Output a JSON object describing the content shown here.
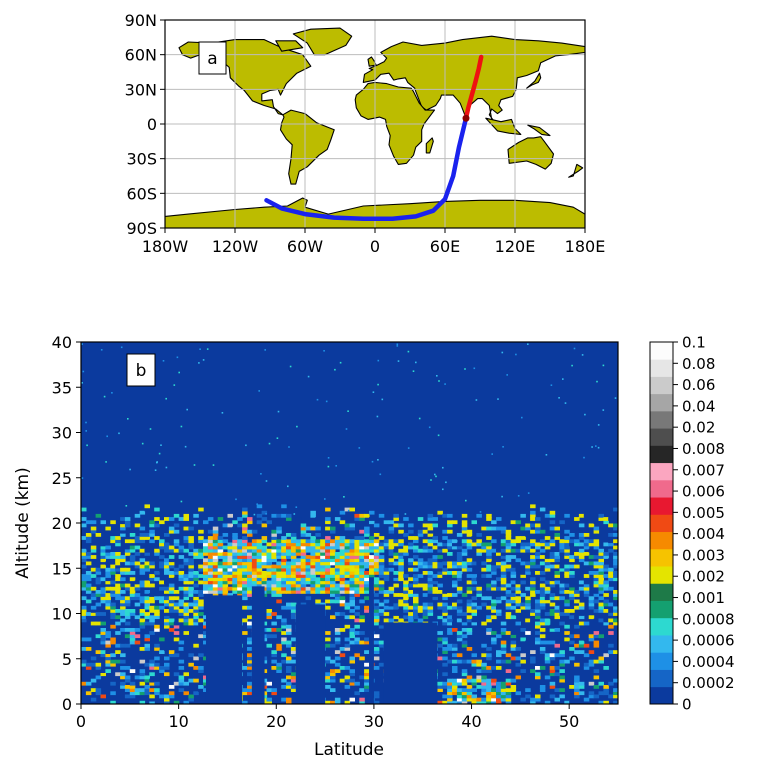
{
  "chart_data": [
    {
      "type": "map",
      "panel_label": "a",
      "x_ticks": [
        "180W",
        "120W",
        "60W",
        "0",
        "60E",
        "120E",
        "180E"
      ],
      "y_ticks": [
        "90N",
        "60N",
        "30N",
        "0",
        "30S",
        "60S",
        "90S"
      ],
      "grid": true,
      "land_color": "#bcbc00",
      "ocean_color": "#ffffff",
      "track": {
        "red_segment": {
          "color": "#ee1111",
          "lon": [
            91,
            89,
            86,
            83,
            80,
            78
          ],
          "lat": [
            58,
            48,
            36,
            25,
            14,
            5
          ]
        },
        "blue_segment": {
          "color": "#1a22ee",
          "lon": [
            78,
            72,
            67,
            60,
            50,
            35,
            15,
            -10,
            -35,
            -60,
            -80,
            -93
          ],
          "lat": [
            5,
            -20,
            -45,
            -65,
            -75,
            -80,
            -82,
            -82,
            -81,
            -78,
            -73,
            -66
          ]
        }
      }
    },
    {
      "type": "heatmap",
      "panel_label": "b",
      "xlabel": "Latitude",
      "ylabel": "Altitude (km)",
      "xlim": [
        0,
        55
      ],
      "ylim": [
        0,
        40
      ],
      "x_ticks": [
        "0",
        "10",
        "20",
        "30",
        "40",
        "50"
      ],
      "y_ticks": [
        "0",
        "5",
        "10",
        "15",
        "20",
        "25",
        "30",
        "35",
        "40"
      ],
      "background_color": "#0b3a9e",
      "colorbar": {
        "labels": [
          "0",
          "0.0002",
          "0.0004",
          "0.0006",
          "0.0008",
          "0.001",
          "0.002",
          "0.003",
          "0.004",
          "0.005",
          "0.006",
          "0.007",
          "0.008",
          "0.02",
          "0.04",
          "0.06",
          "0.08",
          "0.1"
        ],
        "colors": [
          "#0b3a9e",
          "#1565c6",
          "#1e90e6",
          "#33b8ee",
          "#2dd9d0",
          "#14a070",
          "#1e7a48",
          "#e4e400",
          "#f6c300",
          "#f68a00",
          "#f04a14",
          "#e81830",
          "#f06a8c",
          "#fba6c0",
          "#262626",
          "#4e4e4e",
          "#787878",
          "#a6a6a6",
          "#cbcbcb",
          "#e6e6e6",
          "#fcfcfc"
        ]
      },
      "features": {
        "aerosol_layer_top_km": 21,
        "dense_layer_km": [
          8.5,
          18
        ],
        "dense_layer_lat": [
          12.5,
          30
        ]
      }
    }
  ]
}
